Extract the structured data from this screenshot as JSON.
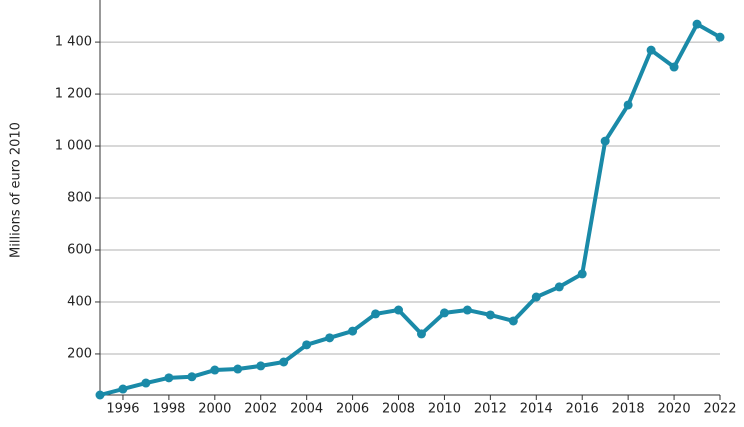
{
  "chart_data": {
    "type": "line",
    "y_label": "Millions of euro 2010",
    "x": [
      1995,
      1996,
      1997,
      1998,
      1999,
      2000,
      2001,
      2002,
      2003,
      2004,
      2005,
      2006,
      2007,
      2008,
      2009,
      2010,
      2011,
      2012,
      2013,
      2014,
      2015,
      2016,
      2017,
      2018,
      2019,
      2020,
      2021,
      2022
    ],
    "series": [
      {
        "color": "#1a8aa8",
        "values": [
          42,
          65,
          88,
          108,
          112,
          138,
          142,
          154,
          169,
          235,
          262,
          288,
          354,
          369,
          277,
          358,
          369,
          350,
          327,
          419,
          458,
          508,
          1019,
          1158,
          1369,
          1304,
          1469,
          1419
        ]
      }
    ],
    "xlim": [
      1995,
      2022
    ],
    "xticks": [
      1996,
      1998,
      2000,
      2002,
      2004,
      2006,
      2008,
      2010,
      2012,
      2014,
      2016,
      2018,
      2020,
      2022
    ],
    "ylim": [
      42,
      1562
    ],
    "yticks": [
      200,
      400,
      600,
      800,
      {
        "value": 1000,
        "label": "1 000"
      },
      {
        "value": 1200,
        "label": "1 200"
      },
      {
        "value": 1400,
        "label": "1 400"
      }
    ],
    "grid": true
  }
}
